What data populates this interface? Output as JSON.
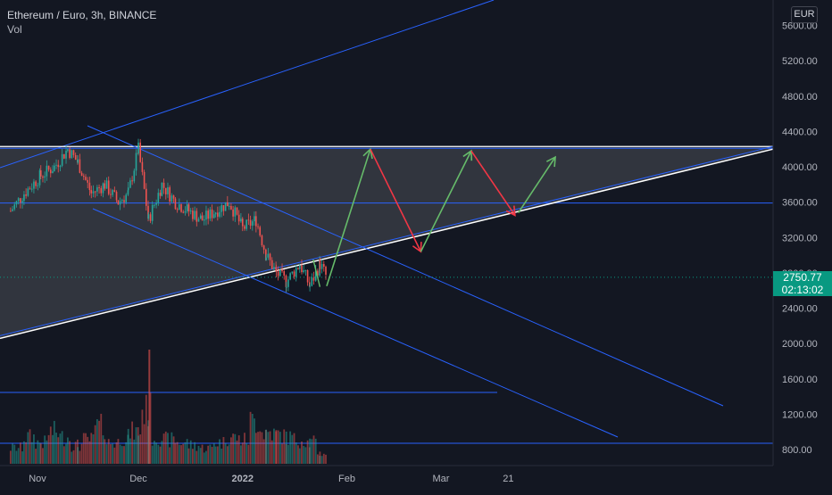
{
  "header": {
    "title": "Ethereum / Euro, 3h, BINANCE",
    "vol_label": "Vol"
  },
  "currency": "EUR",
  "last_price": {
    "value": "2750.77",
    "countdown": "02:13:02"
  },
  "colors": {
    "background": "#131722",
    "up": "#26a69a",
    "down": "#ef5350",
    "trendline": "#2962ff",
    "channel_boundary": "#ffffff",
    "arrow_up": "#66bb6a",
    "arrow_down": "#f23645",
    "last_price": "#089981"
  },
  "chart_data": {
    "type": "candlestick",
    "symbol": "ETHEUR",
    "interval": "3h",
    "exchange": "BINANCE",
    "y_axis": {
      "ticks": [
        800,
        1200,
        1600,
        2000,
        2400,
        2800,
        3200,
        3600,
        4000,
        4400,
        4800,
        5200,
        5600
      ],
      "tick_labels": [
        "800.00",
        "1200.00",
        "1600.00",
        "2000.00",
        "2400.00",
        "2800.00",
        "3200.00",
        "3600.00",
        "4000.00",
        "4400.00",
        "4800.00",
        "5200.00",
        "5600.00"
      ],
      "range": [
        600,
        5800
      ]
    },
    "x_axis": {
      "tick_labels": [
        "Nov",
        "Dec",
        "2022",
        "Feb",
        "Mar",
        "21"
      ]
    },
    "price_path": [
      [
        "2021-10-24",
        3500
      ],
      [
        "2021-10-28",
        3700
      ],
      [
        "2021-11-02",
        3900
      ],
      [
        "2021-11-06",
        4000
      ],
      [
        "2021-11-10",
        4200
      ],
      [
        "2021-11-13",
        4050
      ],
      [
        "2021-11-17",
        3700
      ],
      [
        "2021-11-21",
        3800
      ],
      [
        "2021-11-25",
        3600
      ],
      [
        "2021-11-28",
        3700
      ],
      [
        "2021-12-01",
        4200
      ],
      [
        "2021-12-04",
        3400
      ],
      [
        "2021-12-08",
        3800
      ],
      [
        "2021-12-12",
        3600
      ],
      [
        "2021-12-16",
        3500
      ],
      [
        "2021-12-20",
        3400
      ],
      [
        "2021-12-24",
        3500
      ],
      [
        "2021-12-28",
        3600
      ],
      [
        "2022-01-01",
        3300
      ],
      [
        "2022-01-05",
        3400
      ],
      [
        "2022-01-08",
        3000
      ],
      [
        "2022-01-11",
        2800
      ],
      [
        "2022-01-14",
        2700
      ],
      [
        "2022-01-18",
        2900
      ],
      [
        "2022-01-21",
        2650
      ],
      [
        "2022-01-24",
        2900
      ],
      [
        "2022-01-26",
        2750
      ]
    ],
    "volume_relative": [
      0.3,
      0.5,
      0.4,
      0.6,
      0.5,
      0.35,
      0.45,
      0.7,
      0.4,
      0.5,
      0.6,
      1.0,
      0.5,
      0.45,
      0.4,
      0.35,
      0.3,
      0.4,
      0.5,
      0.45,
      0.8,
      0.6,
      0.55,
      0.5,
      0.45,
      0.4,
      0.2
    ],
    "drawings": {
      "horizontal_levels": [
        4230,
        3590
      ],
      "horizontal_volume_levels": "two horizontal lines in the volume pane",
      "channel": {
        "upper": 4230,
        "lower_from": [
          "2021-10-20",
          2050
        ],
        "lower_to": [
          "2022-03-30",
          3550
        ]
      },
      "projection_arrows": [
        {
          "from": [
            "2022-01-26",
            2650
          ],
          "to": [
            "2022-02-08",
            4200
          ],
          "direction": "up"
        },
        {
          "from": [
            "2022-02-08",
            4200
          ],
          "to": [
            "2022-02-23",
            3040
          ],
          "direction": "down"
        },
        {
          "from": [
            "2022-02-23",
            3040
          ],
          "to": [
            "2022-03-10",
            4180
          ],
          "direction": "up"
        },
        {
          "from": [
            "2022-03-10",
            4180
          ],
          "to": [
            "2022-03-23",
            3450
          ],
          "direction": "down"
        },
        {
          "from": [
            "2022-03-24",
            3480
          ],
          "to": [
            "2022-04-04",
            4110
          ],
          "direction": "up"
        }
      ]
    },
    "legend": "top-left",
    "grid": false
  }
}
